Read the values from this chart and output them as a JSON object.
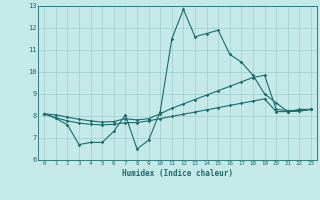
{
  "xlabel": "Humidex (Indice chaleur)",
  "bg_color": "#c5e8e8",
  "grid_color": "#a0cccc",
  "line_color": "#1a6b6b",
  "xlim": [
    -0.5,
    23.5
  ],
  "ylim": [
    6,
    13
  ],
  "xticks": [
    0,
    1,
    2,
    3,
    4,
    5,
    6,
    7,
    8,
    9,
    10,
    11,
    12,
    13,
    14,
    15,
    16,
    17,
    18,
    19,
    20,
    21,
    22,
    23
  ],
  "yticks": [
    6,
    7,
    8,
    9,
    10,
    11,
    12,
    13
  ],
  "line1_x": [
    0,
    1,
    2,
    3,
    4,
    5,
    6,
    7,
    8,
    9,
    10,
    11,
    12,
    13,
    14,
    15,
    16,
    17,
    18,
    19,
    20,
    21,
    22,
    23
  ],
  "line1_y": [
    8.1,
    7.9,
    7.6,
    6.7,
    6.8,
    6.8,
    7.3,
    8.05,
    6.5,
    6.9,
    8.2,
    11.5,
    12.85,
    11.6,
    11.75,
    11.9,
    10.8,
    10.45,
    9.85,
    9.0,
    8.6,
    8.2,
    8.3,
    8.3
  ],
  "line2_x": [
    0,
    1,
    2,
    3,
    4,
    5,
    6,
    7,
    8,
    9,
    10,
    11,
    12,
    13,
    14,
    15,
    16,
    17,
    18,
    19,
    20,
    21,
    22,
    23
  ],
  "line2_y": [
    8.1,
    8.05,
    7.95,
    7.85,
    7.78,
    7.72,
    7.75,
    7.88,
    7.82,
    7.88,
    8.1,
    8.35,
    8.55,
    8.75,
    8.95,
    9.15,
    9.35,
    9.55,
    9.75,
    9.85,
    8.3,
    8.25,
    8.25,
    8.3
  ],
  "line3_x": [
    0,
    1,
    2,
    3,
    4,
    5,
    6,
    7,
    8,
    9,
    10,
    11,
    12,
    13,
    14,
    15,
    16,
    17,
    18,
    19,
    20,
    21,
    22,
    23
  ],
  "line3_y": [
    8.1,
    7.92,
    7.78,
    7.68,
    7.62,
    7.6,
    7.62,
    7.7,
    7.7,
    7.78,
    7.88,
    7.98,
    8.08,
    8.18,
    8.28,
    8.38,
    8.48,
    8.58,
    8.68,
    8.78,
    8.2,
    8.2,
    8.22,
    8.3
  ]
}
